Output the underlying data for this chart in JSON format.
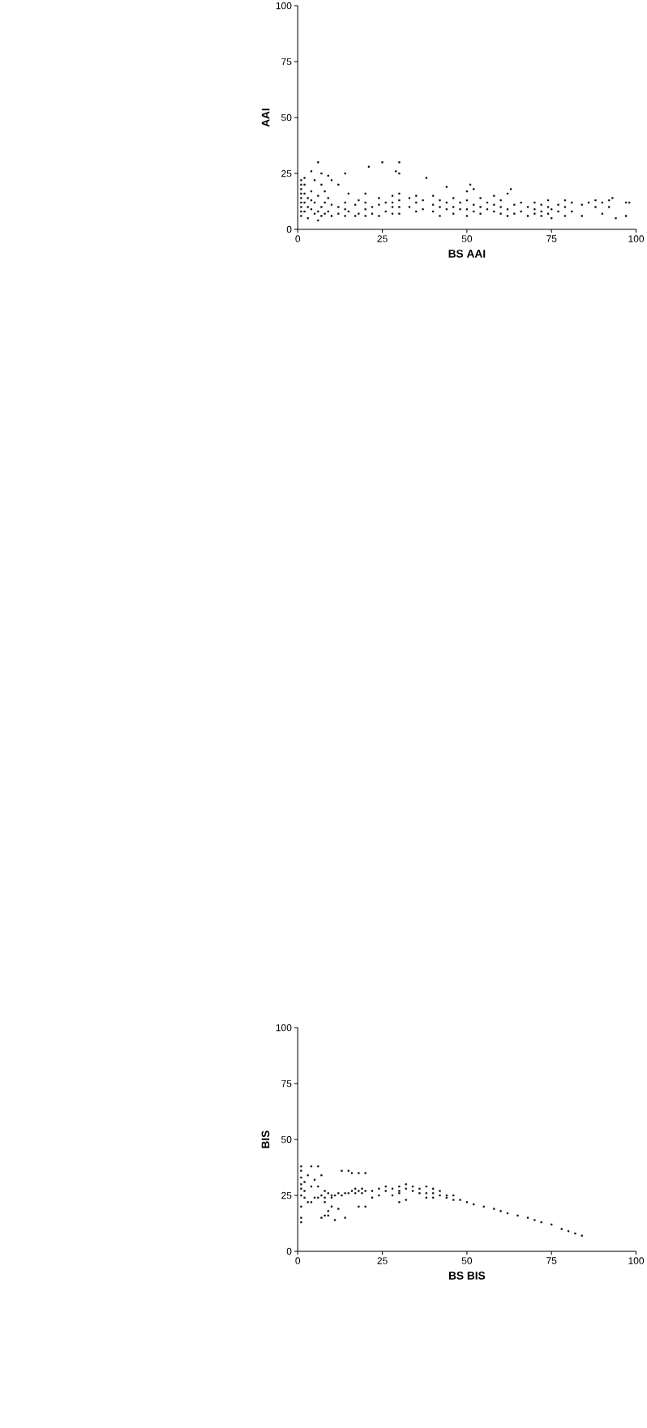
{
  "chart_data": [
    {
      "type": "scatter",
      "xlabel": "BS AAI",
      "ylabel": "AAI",
      "marker": "square",
      "color": "#000000",
      "xlim": [
        0,
        100
      ],
      "ylim": [
        0,
        100
      ],
      "xticks": [
        0,
        25,
        50,
        75,
        100
      ],
      "yticks": [
        0,
        25,
        50,
        75,
        100
      ],
      "x": [
        1,
        1,
        1,
        1,
        1,
        1,
        1,
        1,
        1,
        2,
        2,
        2,
        2,
        2,
        3,
        3,
        3,
        4,
        4,
        4,
        4,
        5,
        5,
        5,
        6,
        6,
        6,
        6,
        7,
        7,
        7,
        7,
        8,
        8,
        8,
        9,
        9,
        9,
        10,
        10,
        10,
        12,
        12,
        12,
        14,
        14,
        14,
        14,
        15,
        15,
        17,
        17,
        18,
        18,
        20,
        20,
        20,
        20,
        21,
        22,
        22,
        24,
        24,
        24,
        26,
        26,
        25,
        28,
        28,
        28,
        28,
        29,
        30,
        30,
        30,
        30,
        30,
        30,
        33,
        33,
        35,
        35,
        35,
        37,
        37,
        38,
        40,
        40,
        40,
        42,
        42,
        42,
        44,
        44,
        44,
        46,
        46,
        46,
        48,
        48,
        50,
        50,
        50,
        50,
        51,
        52,
        52,
        52,
        54,
        54,
        54,
        56,
        56,
        58,
        58,
        58,
        60,
        60,
        60,
        62,
        62,
        62,
        63,
        64,
        64,
        66,
        66,
        68,
        68,
        70,
        70,
        70,
        72,
        72,
        72,
        74,
        74,
        74,
        75,
        75,
        77,
        77,
        79,
        79,
        79,
        81,
        81,
        84,
        84,
        86,
        88,
        88,
        90,
        90,
        92,
        92,
        93,
        94,
        97,
        97,
        98
      ],
      "values": [
        6,
        8,
        10,
        12,
        14,
        16,
        18,
        20,
        22,
        8,
        12,
        16,
        20,
        23,
        5,
        10,
        14,
        9,
        13,
        17,
        26,
        7,
        12,
        22,
        4,
        8,
        15,
        30,
        6,
        10,
        20,
        25,
        7,
        12,
        17,
        8,
        14,
        24,
        6,
        11,
        22,
        7,
        10,
        20,
        6,
        9,
        12,
        25,
        8,
        16,
        6,
        11,
        7,
        13,
        6,
        9,
        12,
        16,
        28,
        7,
        10,
        6,
        11,
        14,
        8,
        12,
        30,
        7,
        10,
        12,
        15,
        26,
        7,
        10,
        13,
        16,
        25,
        30,
        10,
        14,
        8,
        12,
        15,
        9,
        13,
        23,
        8,
        11,
        15,
        6,
        10,
        13,
        9,
        12,
        19,
        7,
        10,
        14,
        9,
        12,
        6,
        9,
        13,
        17,
        20,
        8,
        11,
        18,
        7,
        10,
        14,
        9,
        12,
        8,
        11,
        15,
        7,
        10,
        13,
        6,
        9,
        16,
        18,
        7,
        11,
        8,
        12,
        6,
        10,
        7,
        9,
        12,
        6,
        8,
        11,
        7,
        10,
        13,
        5,
        9,
        8,
        11,
        6,
        10,
        13,
        8,
        12,
        6,
        11,
        12,
        10,
        13,
        7,
        12,
        10,
        13,
        14,
        5,
        12,
        6,
        12
      ]
    },
    {
      "type": "scatter",
      "xlabel": "BS BIS",
      "ylabel": "BIS",
      "marker": "square",
      "color": "#000000",
      "xlim": [
        0,
        100
      ],
      "ylim": [
        0,
        100
      ],
      "xticks": [
        0,
        25,
        50,
        75,
        100
      ],
      "yticks": [
        0,
        25,
        50,
        75,
        100
      ],
      "x": [
        1,
        1,
        1,
        1,
        1,
        1,
        1,
        1,
        1,
        2,
        2,
        2,
        3,
        3,
        4,
        4,
        4,
        5,
        5,
        6,
        6,
        6,
        7,
        7,
        7,
        8,
        8,
        8,
        8,
        9,
        9,
        9,
        10,
        10,
        10,
        11,
        11,
        12,
        12,
        13,
        13,
        14,
        14,
        15,
        15,
        16,
        16,
        17,
        17,
        18,
        18,
        18,
        19,
        19,
        20,
        20,
        20,
        22,
        22,
        24,
        24,
        26,
        26,
        28,
        28,
        30,
        30,
        30,
        30,
        32,
        32,
        32,
        34,
        34,
        36,
        36,
        38,
        38,
        38,
        40,
        40,
        40,
        42,
        42,
        44,
        44,
        46,
        46,
        48,
        50,
        52,
        55,
        58,
        60,
        62,
        65,
        68,
        70,
        72,
        75,
        78,
        80,
        82,
        84
      ],
      "values": [
        13,
        15,
        20,
        25,
        28,
        30,
        33,
        36,
        38,
        24,
        27,
        31,
        22,
        34,
        22,
        29,
        38,
        24,
        32,
        24,
        29,
        38,
        25,
        34,
        15,
        22,
        24,
        27,
        16,
        16,
        18,
        26,
        24,
        25,
        20,
        25,
        14,
        26,
        19,
        25,
        36,
        26,
        15,
        26,
        36,
        27,
        35,
        26,
        28,
        27,
        20,
        35,
        28,
        26,
        27,
        20,
        35,
        27,
        24,
        28,
        25,
        27,
        29,
        28,
        25,
        27,
        29,
        26,
        22,
        28,
        30,
        23,
        27,
        29,
        28,
        26,
        26,
        29,
        24,
        26,
        28,
        24,
        25,
        27,
        25,
        24,
        23,
        25,
        23,
        22,
        21,
        20,
        19,
        18,
        17,
        16,
        15,
        14,
        13,
        12,
        10,
        9,
        8,
        7
      ]
    }
  ]
}
